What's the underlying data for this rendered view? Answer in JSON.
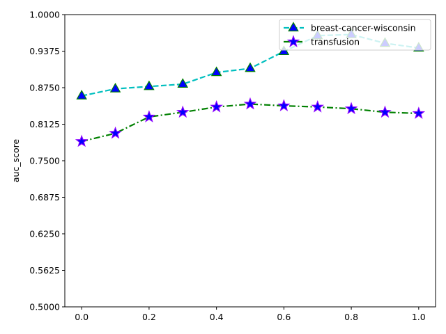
{
  "chart_data": {
    "type": "line",
    "title": "",
    "xlabel": "",
    "ylabel": "auc_score",
    "xlim": [
      -0.05,
      1.05
    ],
    "ylim": [
      0.5,
      1.0
    ],
    "xticks": [
      0.0,
      0.2,
      0.4,
      0.6,
      0.8,
      1.0
    ],
    "xtick_labels": [
      "0.0",
      "0.2",
      "0.4",
      "0.6",
      "0.8",
      "1.0"
    ],
    "yticks": [
      0.5,
      0.5625,
      0.625,
      0.6875,
      0.75,
      0.8125,
      0.875,
      0.9375,
      1.0
    ],
    "ytick_labels": [
      "0.5000",
      "0.5625",
      "0.6250",
      "0.6875",
      "0.7500",
      "0.8125",
      "0.8750",
      "0.9375",
      "1.0000"
    ],
    "grid": false,
    "legend_position": "top-right",
    "x": [
      0.0,
      0.1,
      0.2,
      0.3,
      0.4,
      0.5,
      0.6,
      0.7,
      0.8,
      0.9,
      1.0
    ],
    "series": [
      {
        "name": "breast-cancer-wisconsin",
        "values": [
          0.861,
          0.873,
          0.877,
          0.881,
          0.901,
          0.908,
          0.937,
          0.964,
          0.966,
          0.951,
          0.943
        ],
        "line_color": "#00bfbf",
        "line_style": "dashed",
        "marker": "triangle",
        "marker_face": "#0000ff",
        "marker_edge": "#008000"
      },
      {
        "name": "transfusion",
        "values": [
          0.783,
          0.797,
          0.825,
          0.833,
          0.842,
          0.847,
          0.844,
          0.842,
          0.839,
          0.833,
          0.831
        ],
        "line_color": "#008000",
        "line_style": "dashdot",
        "marker": "star",
        "marker_face": "#0000ff",
        "marker_edge": "#8b00ff"
      }
    ]
  }
}
